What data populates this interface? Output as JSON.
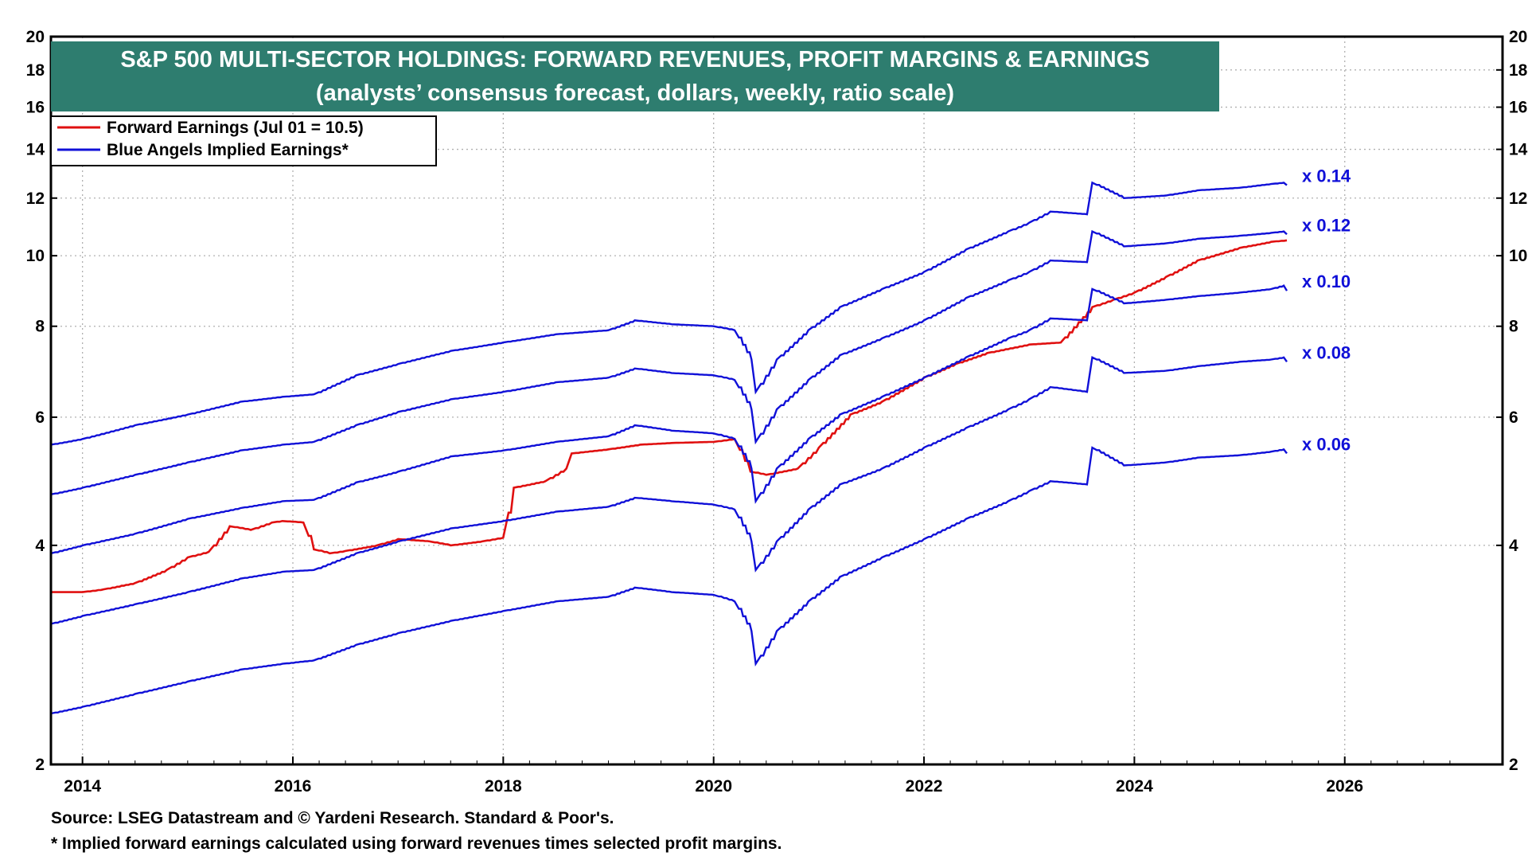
{
  "chart_data": {
    "type": "line",
    "title": "S&P 500 MULTI-SECTOR HOLDINGS: FORWARD REVENUES, PROFIT MARGINS & EARNINGS",
    "subtitle": "(analysts’ consensus forecast, dollars, weekly, ratio scale)",
    "y_scale": "log",
    "ylim": [
      2,
      20
    ],
    "y_ticks": [
      2,
      4,
      6,
      8,
      10,
      12,
      14,
      16,
      18,
      20
    ],
    "xlim": [
      2013.7,
      2027.5
    ],
    "x_ticks": [
      "2014",
      "2016",
      "2018",
      "2020",
      "2022",
      "2024",
      "2026"
    ],
    "grid": true,
    "legend_position": "top-left",
    "legend": [
      {
        "label": "Forward Earnings (Jul 01 = 10.5)",
        "color": "#e01010"
      },
      {
        "label": "Blue Angels Implied Earnings*",
        "color": "#1010d8"
      }
    ],
    "series": [
      {
        "name": "Forward Earnings (Jul 01 = 10.5)",
        "color": "#e01010",
        "x": [
          2013.7,
          2014.0,
          2014.2,
          2014.5,
          2014.8,
          2015.0,
          2015.2,
          2015.4,
          2015.6,
          2015.8,
          2015.9,
          2016.1,
          2016.2,
          2016.35,
          2016.5,
          2016.8,
          2017.0,
          2017.3,
          2017.5,
          2017.8,
          2018.0,
          2018.1,
          2018.4,
          2018.6,
          2018.65,
          2019.0,
          2019.3,
          2019.6,
          2020.0,
          2020.2,
          2020.35,
          2020.5,
          2020.8,
          2021.0,
          2021.3,
          2021.6,
          2022.0,
          2022.3,
          2022.6,
          2023.0,
          2023.3,
          2023.6,
          2023.8,
          2024.0,
          2024.3,
          2024.6,
          2025.0,
          2025.3,
          2025.45
        ],
        "values": [
          3.45,
          3.45,
          3.48,
          3.55,
          3.7,
          3.85,
          3.92,
          4.25,
          4.2,
          4.3,
          4.32,
          4.3,
          3.95,
          3.9,
          3.93,
          4.0,
          4.08,
          4.05,
          4.0,
          4.05,
          4.1,
          4.8,
          4.9,
          5.1,
          5.35,
          5.42,
          5.5,
          5.53,
          5.55,
          5.6,
          5.05,
          5.0,
          5.1,
          5.45,
          6.05,
          6.3,
          6.8,
          7.1,
          7.35,
          7.55,
          7.6,
          8.5,
          8.7,
          8.9,
          9.35,
          9.85,
          10.25,
          10.45,
          10.5
        ]
      },
      {
        "name": "x 0.14",
        "color": "#1010d8",
        "x": [
          2013.7,
          2014.0,
          2014.5,
          2015.0,
          2015.5,
          2015.9,
          2016.2,
          2016.6,
          2017.0,
          2017.5,
          2018.0,
          2018.5,
          2019.0,
          2019.25,
          2019.6,
          2020.0,
          2020.2,
          2020.36,
          2020.4,
          2020.6,
          2020.9,
          2021.2,
          2021.6,
          2022.0,
          2022.4,
          2022.8,
          2023.0,
          2023.2,
          2023.55,
          2023.6,
          2023.9,
          2024.3,
          2024.6,
          2025.0,
          2025.3,
          2025.42,
          2025.45
        ],
        "values": [
          5.5,
          5.6,
          5.85,
          6.05,
          6.3,
          6.4,
          6.45,
          6.85,
          7.1,
          7.4,
          7.6,
          7.8,
          7.9,
          8.15,
          8.05,
          8.0,
          7.9,
          7.2,
          6.5,
          7.2,
          7.9,
          8.5,
          9.0,
          9.5,
          10.2,
          10.8,
          11.1,
          11.5,
          11.4,
          12.6,
          12.0,
          12.1,
          12.3,
          12.4,
          12.55,
          12.6,
          12.5
        ]
      },
      {
        "name": "x 0.12",
        "color": "#1010d8",
        "x": [
          2013.7,
          2014.0,
          2014.5,
          2015.0,
          2015.5,
          2015.9,
          2016.2,
          2016.6,
          2017.0,
          2017.5,
          2018.0,
          2018.5,
          2019.0,
          2019.25,
          2019.6,
          2020.0,
          2020.2,
          2020.36,
          2020.4,
          2020.6,
          2020.9,
          2021.2,
          2021.6,
          2022.0,
          2022.4,
          2022.8,
          2023.0,
          2023.2,
          2023.55,
          2023.6,
          2023.9,
          2024.3,
          2024.6,
          2025.0,
          2025.3,
          2025.42,
          2025.45
        ],
        "values": [
          4.7,
          4.8,
          5.0,
          5.2,
          5.4,
          5.5,
          5.55,
          5.85,
          6.1,
          6.35,
          6.5,
          6.7,
          6.8,
          7.0,
          6.9,
          6.85,
          6.75,
          6.15,
          5.55,
          6.15,
          6.75,
          7.3,
          7.7,
          8.15,
          8.75,
          9.25,
          9.5,
          9.85,
          9.8,
          10.8,
          10.3,
          10.4,
          10.55,
          10.65,
          10.75,
          10.8,
          10.7
        ]
      },
      {
        "name": "x 0.10",
        "color": "#1010d8",
        "x": [
          2013.7,
          2014.0,
          2014.5,
          2015.0,
          2015.5,
          2015.9,
          2016.2,
          2016.6,
          2017.0,
          2017.5,
          2018.0,
          2018.5,
          2019.0,
          2019.25,
          2019.6,
          2020.0,
          2020.2,
          2020.36,
          2020.4,
          2020.6,
          2020.9,
          2021.2,
          2021.6,
          2022.0,
          2022.4,
          2022.8,
          2023.0,
          2023.2,
          2023.55,
          2023.6,
          2023.9,
          2024.3,
          2024.6,
          2025.0,
          2025.3,
          2025.42,
          2025.45
        ],
        "values": [
          3.9,
          4.0,
          4.15,
          4.35,
          4.5,
          4.6,
          4.62,
          4.88,
          5.05,
          5.3,
          5.4,
          5.55,
          5.65,
          5.85,
          5.75,
          5.7,
          5.6,
          5.1,
          4.6,
          5.1,
          5.6,
          6.05,
          6.4,
          6.8,
          7.25,
          7.7,
          7.9,
          8.2,
          8.15,
          9.0,
          8.6,
          8.7,
          8.8,
          8.9,
          9.0,
          9.1,
          8.95
        ]
      },
      {
        "name": "x 0.08",
        "color": "#1010d8",
        "x": [
          2013.7,
          2014.0,
          2014.5,
          2015.0,
          2015.5,
          2015.9,
          2016.2,
          2016.6,
          2017.0,
          2017.5,
          2018.0,
          2018.5,
          2019.0,
          2019.25,
          2019.6,
          2020.0,
          2020.2,
          2020.36,
          2020.4,
          2020.6,
          2020.9,
          2021.2,
          2021.6,
          2022.0,
          2022.4,
          2022.8,
          2023.0,
          2023.2,
          2023.55,
          2023.6,
          2023.9,
          2024.3,
          2024.6,
          2025.0,
          2025.3,
          2025.42,
          2025.45
        ],
        "values": [
          3.12,
          3.2,
          3.32,
          3.45,
          3.6,
          3.68,
          3.7,
          3.9,
          4.05,
          4.22,
          4.32,
          4.45,
          4.52,
          4.65,
          4.6,
          4.55,
          4.48,
          4.05,
          3.7,
          4.05,
          4.48,
          4.85,
          5.1,
          5.45,
          5.8,
          6.15,
          6.35,
          6.6,
          6.5,
          7.25,
          6.9,
          6.95,
          7.05,
          7.15,
          7.2,
          7.25,
          7.15
        ]
      },
      {
        "name": "x 0.06",
        "color": "#1010d8",
        "x": [
          2013.7,
          2014.0,
          2014.5,
          2015.0,
          2015.5,
          2015.9,
          2016.2,
          2016.6,
          2017.0,
          2017.5,
          2018.0,
          2018.5,
          2019.0,
          2019.25,
          2019.6,
          2020.0,
          2020.2,
          2020.36,
          2020.4,
          2020.6,
          2020.9,
          2021.2,
          2021.6,
          2022.0,
          2022.4,
          2022.8,
          2023.0,
          2023.2,
          2023.55,
          2023.6,
          2023.9,
          2024.3,
          2024.6,
          2025.0,
          2025.3,
          2025.42,
          2025.45
        ],
        "values": [
          2.35,
          2.4,
          2.5,
          2.6,
          2.7,
          2.75,
          2.78,
          2.92,
          3.03,
          3.15,
          3.25,
          3.35,
          3.4,
          3.5,
          3.45,
          3.42,
          3.35,
          3.05,
          2.75,
          3.05,
          3.35,
          3.62,
          3.85,
          4.08,
          4.35,
          4.6,
          4.75,
          4.9,
          4.85,
          5.45,
          5.15,
          5.2,
          5.28,
          5.32,
          5.38,
          5.42,
          5.35
        ]
      }
    ],
    "annotations": [
      "x 0.14",
      "x 0.12",
      "x 0.10",
      "x 0.08",
      "x 0.06"
    ]
  },
  "footnotes": {
    "source": "Source: LSEG Datastream and © Yardeni Research. Standard & Poor's.",
    "note": "* Implied forward earnings calculated using forward revenues times selected profit margins."
  }
}
